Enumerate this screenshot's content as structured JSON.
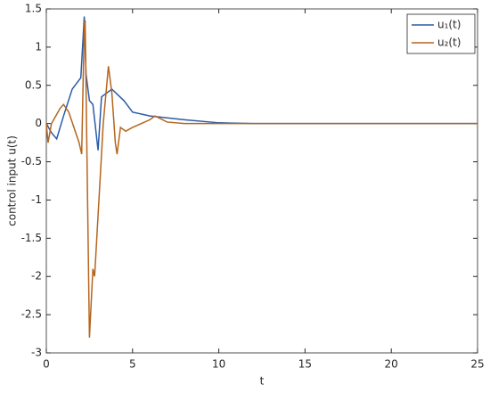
{
  "chart_data": {
    "type": "line",
    "xlabel": "t",
    "ylabel": "control input u(t)",
    "xlim": [
      0,
      25
    ],
    "ylim": [
      -3,
      1.5
    ],
    "xticks": [
      0,
      5,
      10,
      15,
      20,
      25
    ],
    "yticks": [
      -3,
      -2.5,
      -2,
      -1.5,
      -1,
      -0.5,
      0,
      0.5,
      1,
      1.5
    ],
    "legend": "upper right",
    "series": [
      {
        "name": "u₁(t)",
        "color": "#2a5ca8",
        "x": [
          0,
          0.3,
          0.6,
          1.0,
          1.5,
          2.0,
          2.2,
          2.3,
          2.5,
          2.7,
          3.0,
          3.2,
          3.5,
          3.8,
          4.5,
          5,
          6,
          8,
          10,
          12,
          25
        ],
        "values": [
          0,
          -0.12,
          -0.2,
          0.1,
          0.45,
          0.6,
          1.4,
          0.65,
          0.3,
          0.25,
          -0.35,
          0.35,
          0.4,
          0.45,
          0.3,
          0.15,
          0.1,
          0.05,
          0.01,
          0,
          0
        ]
      },
      {
        "name": "u₂(t)",
        "color": "#b5651d",
        "x": [
          0,
          0.1,
          0.3,
          0.8,
          1.0,
          1.3,
          1.6,
          1.9,
          2.05,
          2.2,
          2.25,
          2.5,
          2.7,
          2.8,
          3.0,
          3.3,
          3.6,
          3.8,
          4.0,
          4.1,
          4.3,
          4.6,
          5,
          5.5,
          6,
          6.3,
          7,
          8,
          25
        ],
        "values": [
          0,
          -0.25,
          0,
          0.2,
          0.25,
          0.15,
          -0.05,
          -0.25,
          -0.4,
          1.3,
          1.35,
          -2.8,
          -1.9,
          -2.0,
          -1.2,
          0,
          0.75,
          0.4,
          -0.25,
          -0.4,
          -0.05,
          -0.1,
          -0.05,
          0,
          0.05,
          0.1,
          0.02,
          0,
          0
        ]
      }
    ]
  }
}
